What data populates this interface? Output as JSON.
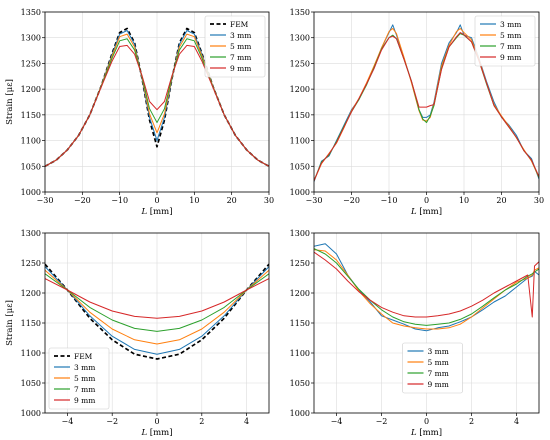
{
  "colors": {
    "FEM": "#000000",
    "3 mm": "#1f77b4",
    "5 mm": "#ff7f0e",
    "7 mm": "#2ca02c",
    "9 mm": "#d62728"
  },
  "chart_data": [
    {
      "type": "line",
      "panel": "top-left",
      "xlabel": "L [mm]",
      "ylabel": "Strain [με]",
      "xlim": [
        -30,
        30
      ],
      "ylim": [
        1000,
        1350
      ],
      "xticks": [
        -30,
        -20,
        -10,
        0,
        10,
        20,
        30
      ],
      "yticks": [
        1000,
        1050,
        1100,
        1150,
        1200,
        1250,
        1300,
        1350
      ],
      "grid": true,
      "legend": "top-right",
      "legend_order": [
        "FEM",
        "3 mm",
        "5 mm",
        "7 mm",
        "9 mm"
      ],
      "x": [
        -30,
        -27,
        -24,
        -21,
        -18,
        -15,
        -12,
        -10,
        -8,
        -6,
        -4,
        -2,
        0,
        2,
        4,
        6,
        8,
        10,
        12,
        15,
        18,
        21,
        24,
        27,
        30
      ],
      "series": [
        {
          "name": "FEM",
          "dashed": true,
          "values": [
            1050,
            1062,
            1082,
            1110,
            1150,
            1205,
            1270,
            1310,
            1318,
            1290,
            1220,
            1140,
            1088,
            1140,
            1220,
            1290,
            1318,
            1310,
            1270,
            1205,
            1150,
            1110,
            1082,
            1062,
            1050
          ]
        },
        {
          "name": "3 mm",
          "values": [
            1050,
            1062,
            1082,
            1110,
            1150,
            1205,
            1268,
            1307,
            1314,
            1287,
            1220,
            1145,
            1100,
            1145,
            1220,
            1287,
            1314,
            1307,
            1268,
            1205,
            1150,
            1110,
            1082,
            1062,
            1050
          ]
        },
        {
          "name": "5 mm",
          "values": [
            1050,
            1062,
            1082,
            1110,
            1150,
            1205,
            1265,
            1302,
            1307,
            1282,
            1222,
            1152,
            1115,
            1152,
            1222,
            1282,
            1307,
            1302,
            1265,
            1205,
            1150,
            1110,
            1082,
            1062,
            1050
          ]
        },
        {
          "name": "7 mm",
          "values": [
            1050,
            1062,
            1082,
            1110,
            1150,
            1204,
            1261,
            1294,
            1298,
            1276,
            1224,
            1162,
            1135,
            1162,
            1224,
            1276,
            1298,
            1294,
            1261,
            1204,
            1150,
            1110,
            1082,
            1062,
            1050
          ]
        },
        {
          "name": "9 mm",
          "values": [
            1050,
            1062,
            1082,
            1110,
            1150,
            1203,
            1255,
            1283,
            1285,
            1268,
            1226,
            1176,
            1160,
            1176,
            1226,
            1268,
            1285,
            1283,
            1255,
            1203,
            1150,
            1110,
            1082,
            1062,
            1050
          ]
        }
      ]
    },
    {
      "type": "line",
      "panel": "top-right",
      "xlabel": "L [mm]",
      "ylabel": "",
      "xlim": [
        -30,
        30
      ],
      "ylim": [
        1000,
        1350
      ],
      "xticks": [
        -30,
        -20,
        -10,
        0,
        10,
        20,
        30
      ],
      "yticks": [
        1000,
        1050,
        1100,
        1150,
        1200,
        1250,
        1300,
        1350
      ],
      "grid": true,
      "legend": "top-right",
      "legend_order": [
        "3 mm",
        "5 mm",
        "7 mm",
        "9 mm"
      ],
      "x": [
        -30,
        -28,
        -26,
        -24,
        -22,
        -20,
        -18,
        -16,
        -14,
        -12,
        -10,
        -9,
        -8,
        -6,
        -4,
        -2,
        -1,
        0,
        1,
        2,
        4,
        6,
        8,
        9,
        10,
        12,
        14,
        16,
        18,
        20,
        22,
        24,
        26,
        28,
        30
      ],
      "series": [
        {
          "name": "3 mm",
          "values": [
            1020,
            1060,
            1070,
            1100,
            1130,
            1160,
            1180,
            1210,
            1240,
            1280,
            1310,
            1325,
            1305,
            1260,
            1215,
            1160,
            1145,
            1145,
            1150,
            1175,
            1250,
            1290,
            1310,
            1325,
            1305,
            1300,
            1260,
            1215,
            1175,
            1145,
            1130,
            1110,
            1080,
            1065,
            1025
          ]
        },
        {
          "name": "5 mm",
          "values": [
            1022,
            1055,
            1075,
            1095,
            1125,
            1158,
            1182,
            1212,
            1245,
            1280,
            1312,
            1318,
            1308,
            1262,
            1212,
            1158,
            1140,
            1138,
            1145,
            1172,
            1245,
            1285,
            1312,
            1318,
            1310,
            1296,
            1258,
            1212,
            1170,
            1148,
            1128,
            1105,
            1082,
            1060,
            1028
          ]
        },
        {
          "name": "7 mm",
          "values": [
            1022,
            1058,
            1072,
            1098,
            1128,
            1156,
            1180,
            1208,
            1242,
            1278,
            1300,
            1305,
            1298,
            1258,
            1215,
            1160,
            1142,
            1135,
            1148,
            1168,
            1240,
            1282,
            1300,
            1308,
            1305,
            1292,
            1255,
            1210,
            1168,
            1146,
            1126,
            1106,
            1080,
            1062,
            1028
          ]
        },
        {
          "name": "9 mm",
          "values": [
            1022,
            1056,
            1074,
            1096,
            1126,
            1156,
            1182,
            1210,
            1240,
            1276,
            1300,
            1303,
            1298,
            1258,
            1215,
            1165,
            1165,
            1165,
            1168,
            1170,
            1238,
            1282,
            1302,
            1310,
            1306,
            1292,
            1255,
            1212,
            1168,
            1146,
            1126,
            1106,
            1080,
            1062,
            1030
          ]
        }
      ]
    },
    {
      "type": "line",
      "panel": "bottom-left",
      "xlabel": "L [mm]",
      "ylabel": "Strain [με]",
      "xlim": [
        -5,
        5
      ],
      "ylim": [
        1000,
        1300
      ],
      "xticks": [
        -4,
        -2,
        0,
        2,
        4
      ],
      "yticks": [
        1000,
        1050,
        1100,
        1150,
        1200,
        1250,
        1300
      ],
      "grid": true,
      "legend": "bottom-left",
      "legend_order": [
        "FEM",
        "3 mm",
        "5 mm",
        "7 mm",
        "9 mm"
      ],
      "x": [
        -5,
        -4,
        -3,
        -2,
        -1,
        0,
        1,
        2,
        3,
        4,
        5
      ],
      "series": [
        {
          "name": "FEM",
          "dashed": true,
          "values": [
            1248,
            1205,
            1158,
            1122,
            1098,
            1090,
            1098,
            1122,
            1158,
            1205,
            1248
          ]
        },
        {
          "name": "3 mm",
          "values": [
            1244,
            1205,
            1162,
            1128,
            1106,
            1098,
            1106,
            1128,
            1162,
            1205,
            1244
          ]
        },
        {
          "name": "5 mm",
          "values": [
            1238,
            1205,
            1168,
            1140,
            1122,
            1115,
            1122,
            1140,
            1168,
            1205,
            1238
          ]
        },
        {
          "name": "7 mm",
          "values": [
            1232,
            1205,
            1176,
            1155,
            1141,
            1136,
            1141,
            1155,
            1176,
            1205,
            1232
          ]
        },
        {
          "name": "9 mm",
          "values": [
            1224,
            1205,
            1185,
            1170,
            1161,
            1158,
            1161,
            1170,
            1185,
            1205,
            1224
          ]
        }
      ]
    },
    {
      "type": "line",
      "panel": "bottom-right",
      "xlabel": "L [mm]",
      "ylabel": "",
      "xlim": [
        -5,
        5
      ],
      "ylim": [
        1000,
        1300
      ],
      "xticks": [
        -4,
        -2,
        0,
        2,
        4
      ],
      "yticks": [
        1000,
        1050,
        1100,
        1150,
        1200,
        1250,
        1300
      ],
      "grid": true,
      "legend": "bottom-center",
      "legend_order": [
        "3 mm",
        "5 mm",
        "7 mm",
        "9 mm"
      ],
      "x": [
        -5,
        -4.5,
        -4,
        -3.5,
        -3,
        -2.5,
        -2,
        -1.5,
        -1,
        -0.5,
        0,
        0.5,
        1,
        1.5,
        2,
        2.5,
        3,
        3.5,
        4,
        4.5,
        4.7,
        4.8,
        5
      ],
      "series": [
        {
          "name": "3 mm",
          "values": [
            1278,
            1282,
            1265,
            1230,
            1205,
            1185,
            1162,
            1155,
            1148,
            1140,
            1137,
            1142,
            1145,
            1152,
            1160,
            1172,
            1185,
            1195,
            1210,
            1225,
            1228,
            1236,
            1230
          ]
        },
        {
          "name": "5 mm",
          "values": [
            1272,
            1270,
            1255,
            1230,
            1203,
            1182,
            1165,
            1150,
            1145,
            1142,
            1140,
            1140,
            1142,
            1148,
            1160,
            1175,
            1190,
            1205,
            1218,
            1225,
            1230,
            1238,
            1242
          ]
        },
        {
          "name": "7 mm",
          "values": [
            1274,
            1265,
            1250,
            1228,
            1206,
            1188,
            1172,
            1160,
            1152,
            1148,
            1146,
            1148,
            1150,
            1156,
            1165,
            1178,
            1192,
            1205,
            1215,
            1228,
            1232,
            1235,
            1240
          ]
        },
        {
          "name": "9 mm",
          "values": [
            1268,
            1255,
            1240,
            1220,
            1202,
            1188,
            1176,
            1168,
            1162,
            1160,
            1160,
            1162,
            1165,
            1170,
            1178,
            1188,
            1200,
            1210,
            1220,
            1230,
            1160,
            1245,
            1252
          ]
        }
      ]
    }
  ]
}
